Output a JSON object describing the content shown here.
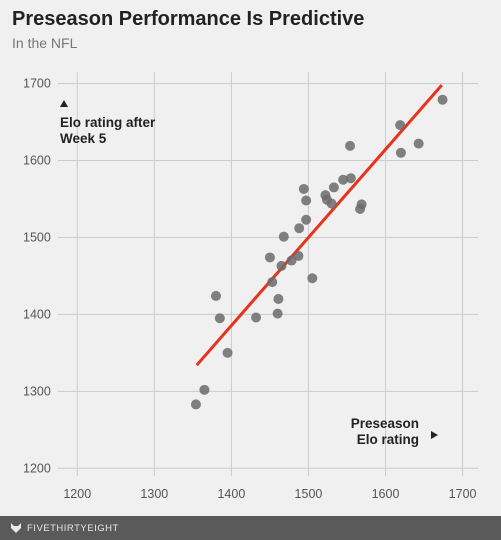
{
  "header": {
    "title": "Preseason Performance Is Predictive",
    "subtitle": "In the NFL"
  },
  "footer": {
    "brand": "FIVETHIRTYEIGHT",
    "logo_icon": "fivethirtyeight-fox-icon"
  },
  "colors": {
    "background": "#f0f0f0",
    "grid": "#cccccc",
    "point": "#6b6b6b",
    "trend_line": "#e8321c",
    "footer_bg": "#5a5a5a"
  },
  "chart_data": {
    "type": "scatter",
    "title": "Preseason Performance Is Predictive",
    "subtitle": "In the NFL",
    "xlabel": "Preseason Elo rating",
    "ylabel": "Elo rating after Week 5",
    "xlim": [
      1175,
      1720
    ],
    "ylim": [
      1190,
      1715
    ],
    "x_ticks": [
      1200,
      1300,
      1400,
      1500,
      1600,
      1700
    ],
    "y_ticks": [
      1200,
      1300,
      1400,
      1500,
      1600,
      1700
    ],
    "grid": true,
    "points": [
      {
        "x": 1354,
        "y": 1283
      },
      {
        "x": 1365,
        "y": 1302
      },
      {
        "x": 1380,
        "y": 1424
      },
      {
        "x": 1385,
        "y": 1395
      },
      {
        "x": 1395,
        "y": 1350
      },
      {
        "x": 1432,
        "y": 1396
      },
      {
        "x": 1450,
        "y": 1474
      },
      {
        "x": 1453,
        "y": 1442
      },
      {
        "x": 1460,
        "y": 1401
      },
      {
        "x": 1461,
        "y": 1420
      },
      {
        "x": 1465,
        "y": 1463
      },
      {
        "x": 1468,
        "y": 1501
      },
      {
        "x": 1478,
        "y": 1470
      },
      {
        "x": 1487,
        "y": 1476
      },
      {
        "x": 1488,
        "y": 1512
      },
      {
        "x": 1494,
        "y": 1563
      },
      {
        "x": 1497,
        "y": 1523
      },
      {
        "x": 1497,
        "y": 1548
      },
      {
        "x": 1505,
        "y": 1447
      },
      {
        "x": 1522,
        "y": 1555
      },
      {
        "x": 1524,
        "y": 1549
      },
      {
        "x": 1530,
        "y": 1544
      },
      {
        "x": 1533,
        "y": 1565
      },
      {
        "x": 1545,
        "y": 1575
      },
      {
        "x": 1554,
        "y": 1619
      },
      {
        "x": 1555,
        "y": 1577
      },
      {
        "x": 1567,
        "y": 1537
      },
      {
        "x": 1569,
        "y": 1543
      },
      {
        "x": 1619,
        "y": 1646
      },
      {
        "x": 1620,
        "y": 1610
      },
      {
        "x": 1643,
        "y": 1622
      },
      {
        "x": 1674,
        "y": 1679
      }
    ],
    "trend_line": {
      "x": [
        1355,
        1673
      ],
      "y": [
        1334,
        1698
      ]
    }
  }
}
